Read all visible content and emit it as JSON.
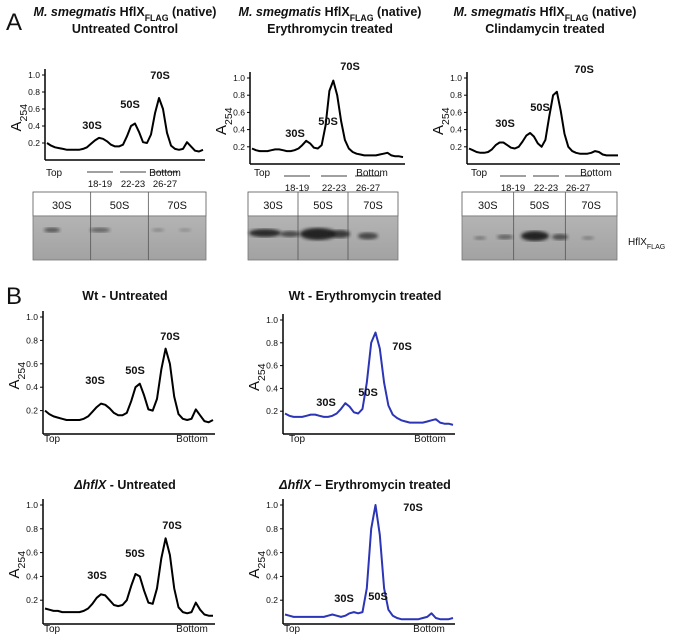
{
  "panels": [
    {
      "label": "A"
    },
    {
      "label": "B"
    }
  ],
  "blot_label": [
    {
      "text": "HflX"
    },
    {
      "text": "FLAG",
      "style": "sub"
    }
  ],
  "chart_data": [
    {
      "type": "line",
      "title": [
        [
          {
            "text": "M. smegmatis",
            "style": "italic"
          },
          {
            "text": " HflX"
          },
          {
            "text": "FLAG",
            "style": "sub"
          },
          {
            "text": " (native)"
          }
        ],
        [
          {
            "text": "Untreated Control"
          }
        ]
      ],
      "y_label": [
        {
          "text": "A"
        },
        {
          "text": "254",
          "style": "sub"
        }
      ],
      "ylim": [
        0,
        1.0
      ],
      "yticks": [
        {
          "value": 0.2,
          "label": "0.2"
        },
        {
          "value": 0.4,
          "label": "0.4"
        },
        {
          "value": 0.6,
          "label": "0.6"
        },
        {
          "value": 0.8,
          "label": "0.8"
        },
        {
          "value": 1.0,
          "label": "1.0"
        }
      ],
      "x_labels": [
        "Top",
        "Bottom"
      ],
      "annotations": [
        "30S",
        "50S",
        "70S"
      ],
      "fractions": [
        "18-19",
        "22-23",
        "26-27"
      ],
      "blot_lanes": [
        "30S",
        "50S",
        "70S"
      ],
      "color": "#000000",
      "values": [
        0.2,
        0.17,
        0.15,
        0.14,
        0.13,
        0.12,
        0.12,
        0.12,
        0.12,
        0.13,
        0.15,
        0.19,
        0.23,
        0.26,
        0.25,
        0.22,
        0.18,
        0.16,
        0.16,
        0.18,
        0.28,
        0.4,
        0.43,
        0.33,
        0.21,
        0.2,
        0.3,
        0.55,
        0.73,
        0.6,
        0.32,
        0.17,
        0.13,
        0.12,
        0.13,
        0.21,
        0.16,
        0.11,
        0.1,
        0.12
      ]
    },
    {
      "type": "line",
      "title": [
        [
          {
            "text": "M. smegmatis",
            "style": "italic"
          },
          {
            "text": " HflX"
          },
          {
            "text": "FLAG",
            "style": "sub"
          },
          {
            "text": " (native)"
          }
        ],
        [
          {
            "text": "Erythromycin treated"
          }
        ]
      ],
      "y_label": [
        {
          "text": "A"
        },
        {
          "text": "254",
          "style": "sub"
        }
      ],
      "ylim": [
        0,
        1.0
      ],
      "yticks": [
        {
          "value": 0.2,
          "label": "0.2"
        },
        {
          "value": 0.4,
          "label": "0.4"
        },
        {
          "value": 0.6,
          "label": "0.6"
        },
        {
          "value": 0.8,
          "label": "0.8"
        },
        {
          "value": 1.0,
          "label": "1.0"
        }
      ],
      "x_labels": [
        "Top",
        "Bottom"
      ],
      "annotations": [
        "30S",
        "50S",
        "70S"
      ],
      "fractions": [
        "18-19",
        "22-23",
        "26-27"
      ],
      "blot_lanes": [
        "30S",
        "50S",
        "70S"
      ],
      "color": "#000000",
      "values": [
        0.18,
        0.16,
        0.15,
        0.15,
        0.15,
        0.16,
        0.17,
        0.17,
        0.16,
        0.15,
        0.15,
        0.16,
        0.18,
        0.22,
        0.27,
        0.24,
        0.19,
        0.18,
        0.22,
        0.45,
        0.85,
        0.97,
        0.8,
        0.5,
        0.28,
        0.18,
        0.14,
        0.12,
        0.11,
        0.1,
        0.1,
        0.1,
        0.1,
        0.11,
        0.12,
        0.13,
        0.1,
        0.09,
        0.09,
        0.08
      ]
    },
    {
      "type": "line",
      "title": [
        [
          {
            "text": "M. smegmatis",
            "style": "italic"
          },
          {
            "text": " HflX"
          },
          {
            "text": "FLAG",
            "style": "sub"
          },
          {
            "text": " (native)"
          }
        ],
        [
          {
            "text": "Clindamycin treated"
          }
        ]
      ],
      "y_label": [
        {
          "text": "A"
        },
        {
          "text": "254",
          "style": "sub"
        }
      ],
      "ylim": [
        0,
        1.0
      ],
      "yticks": [
        {
          "value": 0.2,
          "label": "0.2"
        },
        {
          "value": 0.4,
          "label": "0.4"
        },
        {
          "value": 0.6,
          "label": "0.6"
        },
        {
          "value": 0.8,
          "label": "0.8"
        },
        {
          "value": 1.0,
          "label": "1.0"
        }
      ],
      "x_labels": [
        "Top",
        "Bottom"
      ],
      "annotations": [
        "30S",
        "50S",
        "70S"
      ],
      "fractions": [
        "18-19",
        "22-23",
        "26-27"
      ],
      "blot_lanes": [
        "30S",
        "50S",
        "70S"
      ],
      "color": "#000000",
      "values": [
        0.18,
        0.16,
        0.14,
        0.13,
        0.13,
        0.14,
        0.17,
        0.22,
        0.25,
        0.25,
        0.22,
        0.19,
        0.18,
        0.2,
        0.26,
        0.33,
        0.36,
        0.32,
        0.24,
        0.2,
        0.28,
        0.55,
        0.8,
        0.84,
        0.62,
        0.35,
        0.2,
        0.15,
        0.13,
        0.12,
        0.12,
        0.12,
        0.13,
        0.15,
        0.14,
        0.11,
        0.1,
        0.1,
        0.1,
        0.1
      ]
    },
    {
      "type": "line",
      "title": [
        [
          {
            "text": "Wt - Untreated"
          }
        ]
      ],
      "y_label": [
        {
          "text": "A"
        },
        {
          "text": "254",
          "style": "sub"
        }
      ],
      "ylim": [
        0,
        1.0
      ],
      "yticks": [
        {
          "value": 0.2,
          "label": "0.2"
        },
        {
          "value": 0.4,
          "label": "0.4"
        },
        {
          "value": 0.6,
          "label": "0.6"
        },
        {
          "value": 0.8,
          "label": "0.8"
        },
        {
          "value": 1.0,
          "label": "1.0"
        }
      ],
      "x_labels": [
        "Top",
        "Bottom"
      ],
      "annotations": [
        "30S",
        "50S",
        "70S"
      ],
      "color": "#000000",
      "values": [
        0.2,
        0.17,
        0.15,
        0.14,
        0.13,
        0.12,
        0.12,
        0.12,
        0.12,
        0.13,
        0.15,
        0.19,
        0.23,
        0.26,
        0.25,
        0.22,
        0.18,
        0.16,
        0.16,
        0.18,
        0.28,
        0.4,
        0.43,
        0.33,
        0.21,
        0.2,
        0.3,
        0.55,
        0.73,
        0.6,
        0.32,
        0.17,
        0.13,
        0.12,
        0.13,
        0.21,
        0.16,
        0.11,
        0.1,
        0.12
      ]
    },
    {
      "type": "line",
      "title": [
        [
          {
            "text": "Wt - Erythromycin treated"
          }
        ]
      ],
      "y_label": [
        {
          "text": "A"
        },
        {
          "text": "254",
          "style": "sub"
        }
      ],
      "ylim": [
        0,
        1.0
      ],
      "yticks": [
        {
          "value": 0.2,
          "label": "0.2"
        },
        {
          "value": 0.4,
          "label": "0.4"
        },
        {
          "value": 0.6,
          "label": "0.6"
        },
        {
          "value": 0.8,
          "label": "0.8"
        },
        {
          "value": 1.0,
          "label": "1.0"
        }
      ],
      "x_labels": [
        "Top",
        "Bottom"
      ],
      "annotations": [
        "30S",
        "50S",
        "70S"
      ],
      "color": "#2b35b5",
      "values": [
        0.18,
        0.16,
        0.15,
        0.15,
        0.15,
        0.16,
        0.17,
        0.17,
        0.16,
        0.15,
        0.15,
        0.16,
        0.18,
        0.22,
        0.27,
        0.24,
        0.19,
        0.18,
        0.22,
        0.45,
        0.8,
        0.89,
        0.75,
        0.45,
        0.25,
        0.17,
        0.14,
        0.12,
        0.11,
        0.1,
        0.1,
        0.1,
        0.1,
        0.11,
        0.12,
        0.13,
        0.1,
        0.09,
        0.09,
        0.08
      ]
    },
    {
      "type": "line",
      "title": [
        [
          {
            "text": "ΔhflX",
            "style": "italic"
          },
          {
            "text": " - Untreated"
          }
        ]
      ],
      "y_label": [
        {
          "text": "A"
        },
        {
          "text": "254",
          "style": "sub"
        }
      ],
      "ylim": [
        0,
        1.0
      ],
      "yticks": [
        {
          "value": 0.2,
          "label": "0.2"
        },
        {
          "value": 0.4,
          "label": "0.4"
        },
        {
          "value": 0.6,
          "label": "0.6"
        },
        {
          "value": 0.8,
          "label": "0.8"
        },
        {
          "value": 1.0,
          "label": "1.0"
        }
      ],
      "x_labels": [
        "Top",
        "Bottom"
      ],
      "annotations": [
        "30S",
        "50S",
        "70S"
      ],
      "color": "#000000",
      "values": [
        0.13,
        0.12,
        0.11,
        0.11,
        0.1,
        0.1,
        0.1,
        0.1,
        0.1,
        0.11,
        0.13,
        0.17,
        0.22,
        0.25,
        0.24,
        0.2,
        0.16,
        0.15,
        0.16,
        0.2,
        0.32,
        0.42,
        0.4,
        0.28,
        0.18,
        0.17,
        0.3,
        0.55,
        0.72,
        0.58,
        0.3,
        0.14,
        0.1,
        0.09,
        0.1,
        0.18,
        0.12,
        0.08,
        0.07,
        0.07
      ]
    },
    {
      "type": "line",
      "title": [
        [
          {
            "text": "ΔhflX",
            "style": "italic"
          },
          {
            "text": " – Erythromycin treated"
          }
        ]
      ],
      "y_label": [
        {
          "text": "A"
        },
        {
          "text": "254",
          "style": "sub"
        }
      ],
      "ylim": [
        0,
        1.0
      ],
      "yticks": [
        {
          "value": 0.2,
          "label": "0.2"
        },
        {
          "value": 0.4,
          "label": "0.4"
        },
        {
          "value": 0.6,
          "label": "0.6"
        },
        {
          "value": 0.8,
          "label": "0.8"
        },
        {
          "value": 1.0,
          "label": "1.0"
        }
      ],
      "x_labels": [
        "Top",
        "Bottom"
      ],
      "annotations": [
        "30S",
        "50S",
        "70S"
      ],
      "color": "#2b35b5",
      "values": [
        0.08,
        0.07,
        0.06,
        0.06,
        0.06,
        0.06,
        0.06,
        0.06,
        0.06,
        0.06,
        0.07,
        0.08,
        0.07,
        0.06,
        0.07,
        0.09,
        0.1,
        0.09,
        0.1,
        0.3,
        0.8,
        1.0,
        0.75,
        0.3,
        0.12,
        0.07,
        0.05,
        0.04,
        0.04,
        0.04,
        0.04,
        0.04,
        0.05,
        0.06,
        0.09,
        0.05,
        0.04,
        0.04,
        0.04,
        0.05
      ]
    }
  ]
}
